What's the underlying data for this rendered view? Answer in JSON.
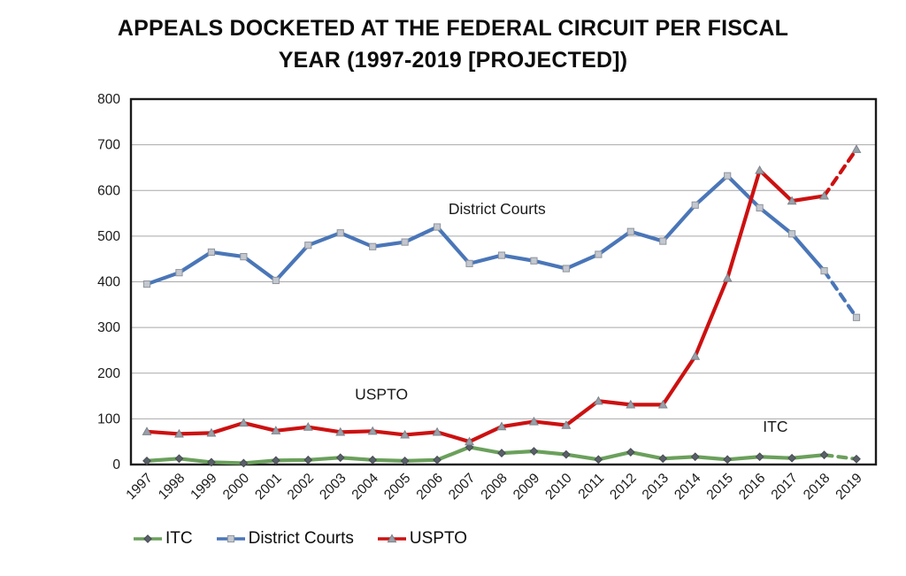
{
  "title": {
    "line1": "APPEALS DOCKETED AT THE FEDERAL CIRCUIT PER FISCAL",
    "line2": "YEAR (1997-2019 [PROJECTED])"
  },
  "chart_data": {
    "type": "line",
    "x": [
      1997,
      1998,
      1999,
      2000,
      2001,
      2002,
      2003,
      2004,
      2005,
      2006,
      2007,
      2008,
      2009,
      2010,
      2011,
      2012,
      2013,
      2014,
      2015,
      2016,
      2017,
      2018,
      2019
    ],
    "series": [
      {
        "name": "ITC",
        "color": "#6ba05c",
        "marker": "diamond",
        "marker_fill": "#5a6068",
        "marker_stroke": "#474c52",
        "values": [
          8,
          13,
          5,
          3,
          9,
          10,
          15,
          10,
          8,
          10,
          38,
          25,
          29,
          22,
          11,
          27,
          13,
          17,
          11,
          17,
          14,
          21,
          12
        ],
        "dashed_from_x": 2018
      },
      {
        "name": "District Courts",
        "color": "#4a76b8",
        "marker": "square",
        "marker_fill": "#c3c7cf",
        "marker_stroke": "#8f949c",
        "values": [
          395,
          420,
          465,
          455,
          403,
          480,
          507,
          477,
          487,
          520,
          440,
          458,
          446,
          429,
          460,
          510,
          489,
          568,
          632,
          562,
          505,
          424,
          322
        ],
        "dashed_from_x": 2018
      },
      {
        "name": "USPTO",
        "color": "#cc1111",
        "marker": "triangle",
        "marker_fill": "#9aa0a8",
        "marker_stroke": "#7d838b",
        "values": [
          72,
          67,
          69,
          91,
          74,
          82,
          71,
          73,
          65,
          71,
          50,
          83,
          94,
          86,
          139,
          131,
          131,
          237,
          408,
          644,
          577,
          588,
          690
        ],
        "dashed_from_x": 2018
      }
    ],
    "ylim": [
      0,
      800
    ],
    "ytick_step": 100,
    "grid": true,
    "legend_position": "bottom-left",
    "legend": [
      "ITC",
      "District Courts",
      "USPTO"
    ],
    "annotations": [
      {
        "text": "District Courts",
        "year": 2006.35,
        "value": 548
      },
      {
        "text": "USPTO",
        "year": 2003.45,
        "value": 142
      },
      {
        "text": "ITC",
        "year": 2016.1,
        "value": 72
      }
    ],
    "projection_note": "final segment 2018-2019 drawn dashed (projected)",
    "colors": {
      "grid": "#a9a9a9",
      "border": "#1a1a1a",
      "tick_label": "#1a1a1a",
      "annotation": "#1a1a1a"
    }
  }
}
